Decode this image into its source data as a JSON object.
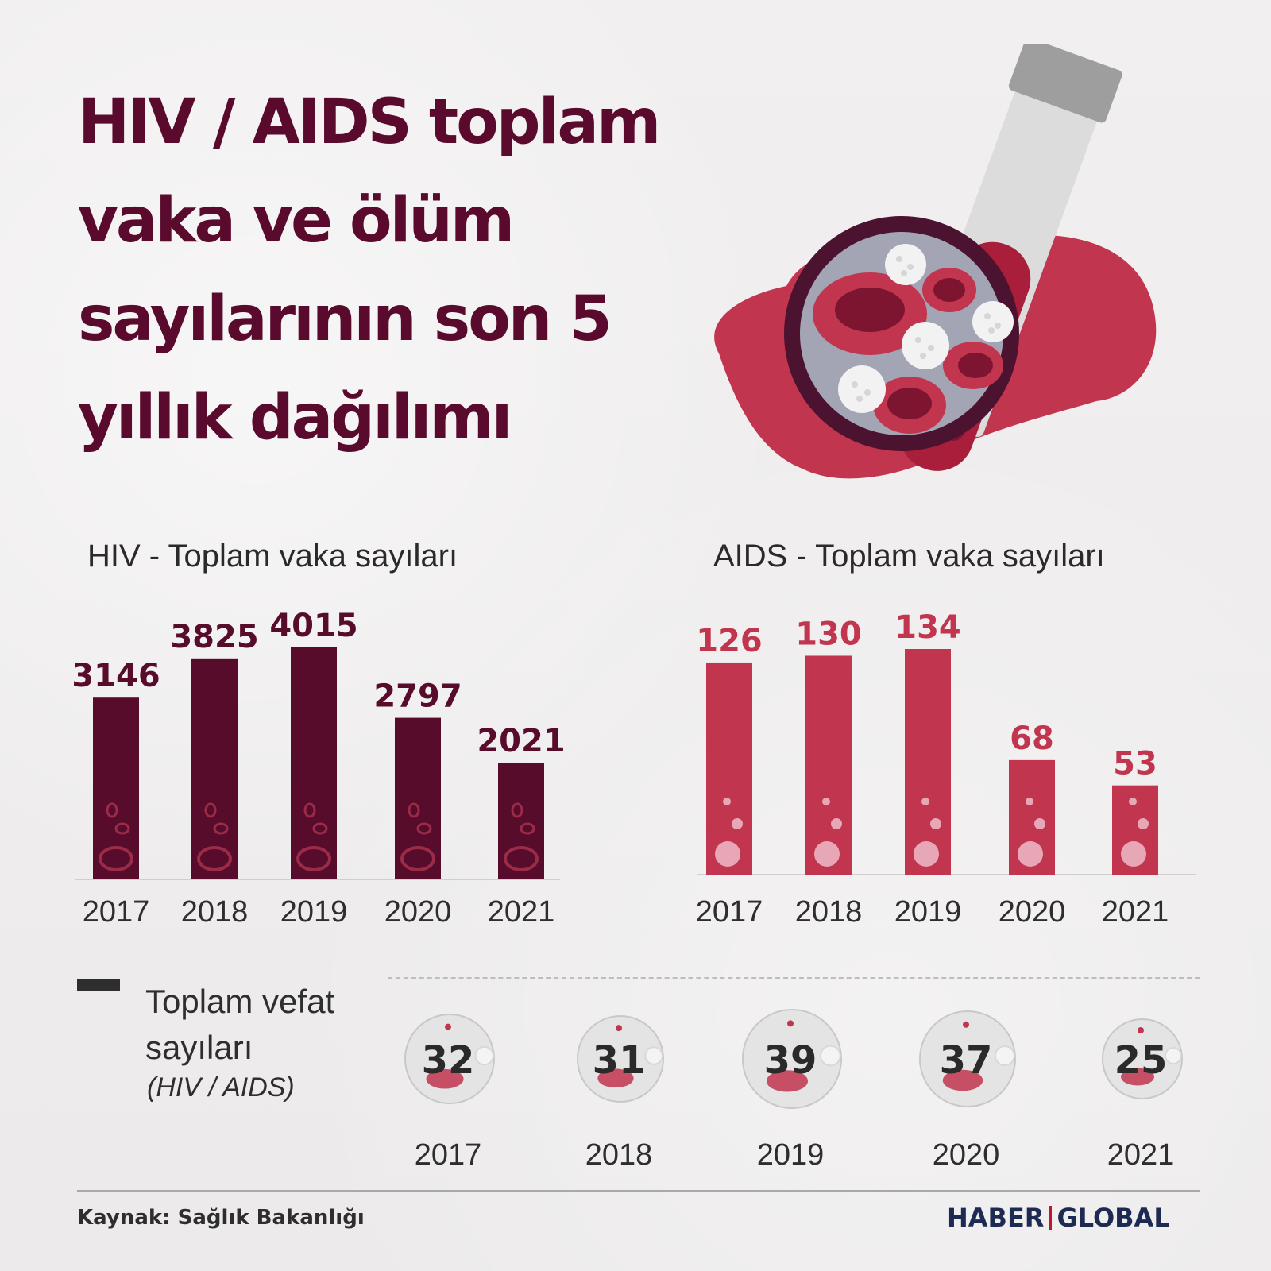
{
  "title": "HIV / AIDS toplam\nvaka ve ölüm\nsayılarının son 5\nyıllık dağılımı",
  "colors": {
    "hiv": "#570c2c",
    "aids": "#c2354f",
    "text_dark": "#2e2e2e"
  },
  "chart_data": [
    {
      "type": "bar",
      "title": "HIV - Toplam vaka sayıları",
      "categories": [
        "2017",
        "2018",
        "2019",
        "2020",
        "2021"
      ],
      "values": [
        3146,
        3825,
        4015,
        2797,
        2021
      ],
      "value_labels": [
        "3146",
        "3825",
        "4015",
        "2797",
        "2021"
      ],
      "ylim": [
        0,
        4015
      ],
      "grid": false
    },
    {
      "type": "bar",
      "title": "AIDS - Toplam vaka sayıları",
      "categories": [
        "2017",
        "2018",
        "2019",
        "2020",
        "2021"
      ],
      "values": [
        126,
        130,
        134,
        68,
        53
      ],
      "value_labels": [
        "126",
        "130",
        "134",
        "68",
        "53"
      ],
      "ylim": [
        0,
        134
      ],
      "grid": false
    },
    {
      "type": "table",
      "title": "Toplam vefat\nsayıları",
      "subtitle": "(HIV / AIDS)",
      "categories": [
        "2017",
        "2018",
        "2019",
        "2020",
        "2021"
      ],
      "values": [
        32,
        31,
        39,
        37,
        25
      ],
      "value_labels": [
        "32",
        "31",
        "39",
        "37",
        "25"
      ]
    }
  ],
  "source": "Kaynak: Sağlık Bakanlığı",
  "brand": {
    "left": "HABER",
    "right": "GLOBAL"
  }
}
